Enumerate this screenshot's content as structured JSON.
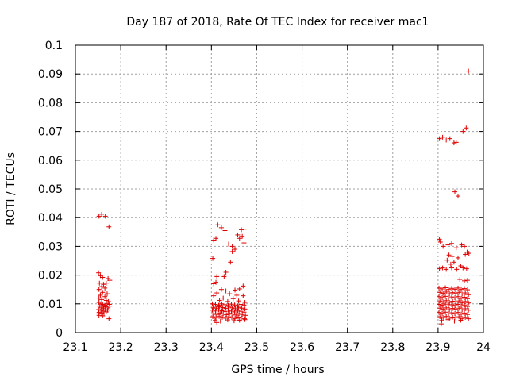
{
  "chart_data": {
    "type": "scatter",
    "title": "Day 187 of 2018, Rate Of TEC Index for receiver mac1",
    "xlabel": "GPS time / hours",
    "ylabel": "ROTI / TECUs",
    "xlim": [
      23.1,
      24.0
    ],
    "ylim": [
      0.0,
      0.1
    ],
    "x_ticks": [
      "23.1",
      "23.2",
      "23.3",
      "23.4",
      "23.5",
      "23.6",
      "23.7",
      "23.8",
      "23.9",
      "24"
    ],
    "y_ticks": [
      "0",
      "0.01",
      "0.02",
      "0.03",
      "0.04",
      "0.05",
      "0.06",
      "0.07",
      "0.08",
      "0.09",
      "0.1"
    ],
    "grid": true,
    "marker": "+",
    "marker_color": "#e00000",
    "series": [
      {
        "name": "ROTI",
        "points": [
          [
            23.152,
            0.0405
          ],
          [
            23.158,
            0.0412
          ],
          [
            23.166,
            0.0405
          ],
          [
            23.174,
            0.0368
          ],
          [
            23.151,
            0.0208
          ],
          [
            23.155,
            0.0198
          ],
          [
            23.16,
            0.0192
          ],
          [
            23.172,
            0.0188
          ],
          [
            23.176,
            0.0182
          ],
          [
            23.153,
            0.0172
          ],
          [
            23.162,
            0.0168
          ],
          [
            23.168,
            0.0172
          ],
          [
            23.158,
            0.016
          ],
          [
            23.165,
            0.0155
          ],
          [
            23.152,
            0.015
          ],
          [
            23.16,
            0.014
          ],
          [
            23.17,
            0.0135
          ],
          [
            23.155,
            0.013
          ],
          [
            23.165,
            0.0125
          ],
          [
            23.152,
            0.012
          ],
          [
            23.158,
            0.0115
          ],
          [
            23.168,
            0.0112
          ],
          [
            23.173,
            0.0108
          ],
          [
            23.152,
            0.0105
          ],
          [
            23.156,
            0.01
          ],
          [
            23.16,
            0.0098
          ],
          [
            23.165,
            0.0095
          ],
          [
            23.17,
            0.01
          ],
          [
            23.175,
            0.0098
          ],
          [
            23.153,
            0.0092
          ],
          [
            23.158,
            0.0088
          ],
          [
            23.162,
            0.0085
          ],
          [
            23.167,
            0.009
          ],
          [
            23.172,
            0.0086
          ],
          [
            23.176,
            0.0092
          ],
          [
            23.151,
            0.008
          ],
          [
            23.156,
            0.0078
          ],
          [
            23.161,
            0.0075
          ],
          [
            23.166,
            0.008
          ],
          [
            23.171,
            0.0078
          ],
          [
            23.152,
            0.007
          ],
          [
            23.158,
            0.0068
          ],
          [
            23.163,
            0.0065
          ],
          [
            23.168,
            0.0072
          ],
          [
            23.152,
            0.006
          ],
          [
            23.16,
            0.0058
          ],
          [
            23.174,
            0.0048
          ],
          [
            23.414,
            0.0375
          ],
          [
            23.422,
            0.0365
          ],
          [
            23.43,
            0.0355
          ],
          [
            23.466,
            0.0358
          ],
          [
            23.472,
            0.036
          ],
          [
            23.458,
            0.034
          ],
          [
            23.462,
            0.0328
          ],
          [
            23.468,
            0.0335
          ],
          [
            23.405,
            0.0322
          ],
          [
            23.41,
            0.0328
          ],
          [
            23.438,
            0.0308
          ],
          [
            23.446,
            0.03
          ],
          [
            23.452,
            0.029
          ],
          [
            23.472,
            0.0312
          ],
          [
            23.446,
            0.0282
          ],
          [
            23.403,
            0.0258
          ],
          [
            23.442,
            0.0245
          ],
          [
            23.432,
            0.021
          ],
          [
            23.428,
            0.0195
          ],
          [
            23.412,
            0.0195
          ],
          [
            23.405,
            0.017
          ],
          [
            23.41,
            0.0175
          ],
          [
            23.47,
            0.0162
          ],
          [
            23.462,
            0.0152
          ],
          [
            23.422,
            0.015
          ],
          [
            23.432,
            0.0145
          ],
          [
            23.452,
            0.0148
          ],
          [
            23.412,
            0.0138
          ],
          [
            23.44,
            0.0135
          ],
          [
            23.456,
            0.013
          ],
          [
            23.47,
            0.0128
          ],
          [
            23.405,
            0.0128
          ],
          [
            23.426,
            0.012
          ],
          [
            23.448,
            0.0118
          ],
          [
            23.418,
            0.0112
          ],
          [
            23.436,
            0.0108
          ],
          [
            23.46,
            0.011
          ],
          [
            23.474,
            0.0105
          ],
          [
            23.402,
            0.01
          ],
          [
            23.409,
            0.0098
          ],
          [
            23.416,
            0.0095
          ],
          [
            23.423,
            0.01
          ],
          [
            23.43,
            0.0097
          ],
          [
            23.437,
            0.0094
          ],
          [
            23.444,
            0.0099
          ],
          [
            23.451,
            0.0096
          ],
          [
            23.458,
            0.0093
          ],
          [
            23.465,
            0.0098
          ],
          [
            23.472,
            0.0095
          ],
          [
            23.404,
            0.0088
          ],
          [
            23.411,
            0.0085
          ],
          [
            23.418,
            0.009
          ],
          [
            23.425,
            0.0087
          ],
          [
            23.432,
            0.0084
          ],
          [
            23.439,
            0.0089
          ],
          [
            23.446,
            0.0086
          ],
          [
            23.453,
            0.0083
          ],
          [
            23.46,
            0.0088
          ],
          [
            23.467,
            0.0085
          ],
          [
            23.474,
            0.0082
          ],
          [
            23.402,
            0.0078
          ],
          [
            23.409,
            0.0075
          ],
          [
            23.416,
            0.0079
          ],
          [
            23.423,
            0.0076
          ],
          [
            23.43,
            0.0073
          ],
          [
            23.437,
            0.0078
          ],
          [
            23.444,
            0.0075
          ],
          [
            23.451,
            0.0072
          ],
          [
            23.458,
            0.0077
          ],
          [
            23.465,
            0.0074
          ],
          [
            23.472,
            0.0071
          ],
          [
            23.405,
            0.0066
          ],
          [
            23.412,
            0.0063
          ],
          [
            23.419,
            0.0068
          ],
          [
            23.426,
            0.0065
          ],
          [
            23.433,
            0.0062
          ],
          [
            23.44,
            0.0067
          ],
          [
            23.447,
            0.0064
          ],
          [
            23.454,
            0.0061
          ],
          [
            23.461,
            0.0066
          ],
          [
            23.468,
            0.0063
          ],
          [
            23.475,
            0.006
          ],
          [
            23.403,
            0.0055
          ],
          [
            23.41,
            0.0052
          ],
          [
            23.417,
            0.0056
          ],
          [
            23.424,
            0.0053
          ],
          [
            23.431,
            0.005
          ],
          [
            23.438,
            0.0055
          ],
          [
            23.445,
            0.0052
          ],
          [
            23.452,
            0.0049
          ],
          [
            23.459,
            0.0054
          ],
          [
            23.466,
            0.0051
          ],
          [
            23.473,
            0.0048
          ],
          [
            23.408,
            0.0042
          ],
          [
            23.42,
            0.004
          ],
          [
            23.436,
            0.0044
          ],
          [
            23.45,
            0.0041
          ],
          [
            23.462,
            0.0043
          ],
          [
            23.474,
            0.0045
          ],
          [
            23.412,
            0.0035
          ],
          [
            23.903,
            0.0675
          ],
          [
            23.91,
            0.068
          ],
          [
            23.918,
            0.067
          ],
          [
            23.926,
            0.0675
          ],
          [
            23.935,
            0.066
          ],
          [
            23.94,
            0.0662
          ],
          [
            23.955,
            0.07
          ],
          [
            23.962,
            0.0712
          ],
          [
            23.967,
            0.091
          ],
          [
            23.937,
            0.049
          ],
          [
            23.944,
            0.0475
          ],
          [
            23.903,
            0.0325
          ],
          [
            23.905,
            0.0315
          ],
          [
            23.911,
            0.03
          ],
          [
            23.922,
            0.0305
          ],
          [
            23.93,
            0.031
          ],
          [
            23.94,
            0.0295
          ],
          [
            23.952,
            0.0305
          ],
          [
            23.958,
            0.03
          ],
          [
            23.964,
            0.028
          ],
          [
            23.96,
            0.0272
          ],
          [
            23.968,
            0.0276
          ],
          [
            23.924,
            0.027
          ],
          [
            23.931,
            0.0265
          ],
          [
            23.944,
            0.026
          ],
          [
            23.92,
            0.0252
          ],
          [
            23.935,
            0.0245
          ],
          [
            23.928,
            0.0238
          ],
          [
            23.95,
            0.0232
          ],
          [
            23.903,
            0.0222
          ],
          [
            23.91,
            0.0225
          ],
          [
            23.918,
            0.022
          ],
          [
            23.93,
            0.0225
          ],
          [
            23.941,
            0.022
          ],
          [
            23.955,
            0.0225
          ],
          [
            23.963,
            0.0222
          ],
          [
            23.948,
            0.0185
          ],
          [
            23.958,
            0.018
          ],
          [
            23.965,
            0.0182
          ],
          [
            23.902,
            0.0155
          ],
          [
            23.909,
            0.0152
          ],
          [
            23.916,
            0.0156
          ],
          [
            23.923,
            0.015
          ],
          [
            23.93,
            0.0154
          ],
          [
            23.937,
            0.0151
          ],
          [
            23.944,
            0.0155
          ],
          [
            23.951,
            0.015
          ],
          [
            23.958,
            0.0153
          ],
          [
            23.965,
            0.0149
          ],
          [
            23.904,
            0.014
          ],
          [
            23.911,
            0.0137
          ],
          [
            23.918,
            0.0141
          ],
          [
            23.925,
            0.0135
          ],
          [
            23.932,
            0.0139
          ],
          [
            23.939,
            0.0136
          ],
          [
            23.946,
            0.014
          ],
          [
            23.953,
            0.0134
          ],
          [
            23.96,
            0.0138
          ],
          [
            23.967,
            0.0132
          ],
          [
            23.902,
            0.0125
          ],
          [
            23.909,
            0.0122
          ],
          [
            23.916,
            0.0126
          ],
          [
            23.923,
            0.012
          ],
          [
            23.93,
            0.0124
          ],
          [
            23.937,
            0.0121
          ],
          [
            23.944,
            0.0125
          ],
          [
            23.951,
            0.0119
          ],
          [
            23.958,
            0.0123
          ],
          [
            23.965,
            0.0118
          ],
          [
            23.904,
            0.011
          ],
          [
            23.911,
            0.0107
          ],
          [
            23.918,
            0.0111
          ],
          [
            23.925,
            0.0105
          ],
          [
            23.932,
            0.0109
          ],
          [
            23.939,
            0.0106
          ],
          [
            23.946,
            0.011
          ],
          [
            23.953,
            0.0104
          ],
          [
            23.96,
            0.0108
          ],
          [
            23.967,
            0.0103
          ],
          [
            23.902,
            0.0098
          ],
          [
            23.909,
            0.0095
          ],
          [
            23.916,
            0.0099
          ],
          [
            23.923,
            0.0093
          ],
          [
            23.93,
            0.0097
          ],
          [
            23.937,
            0.0094
          ],
          [
            23.944,
            0.0098
          ],
          [
            23.951,
            0.0092
          ],
          [
            23.958,
            0.0096
          ],
          [
            23.965,
            0.0091
          ],
          [
            23.904,
            0.0085
          ],
          [
            23.911,
            0.0082
          ],
          [
            23.918,
            0.0086
          ],
          [
            23.925,
            0.008
          ],
          [
            23.932,
            0.0084
          ],
          [
            23.939,
            0.0081
          ],
          [
            23.946,
            0.0085
          ],
          [
            23.953,
            0.0079
          ],
          [
            23.96,
            0.0083
          ],
          [
            23.967,
            0.0078
          ],
          [
            23.902,
            0.007
          ],
          [
            23.909,
            0.0067
          ],
          [
            23.916,
            0.0071
          ],
          [
            23.923,
            0.0065
          ],
          [
            23.93,
            0.0069
          ],
          [
            23.937,
            0.0066
          ],
          [
            23.944,
            0.007
          ],
          [
            23.951,
            0.0064
          ],
          [
            23.958,
            0.0068
          ],
          [
            23.965,
            0.0063
          ],
          [
            23.904,
            0.0055
          ],
          [
            23.911,
            0.0052
          ],
          [
            23.918,
            0.0056
          ],
          [
            23.925,
            0.005
          ],
          [
            23.932,
            0.0054
          ],
          [
            23.939,
            0.0051
          ],
          [
            23.946,
            0.0055
          ],
          [
            23.953,
            0.0049
          ],
          [
            23.96,
            0.0053
          ],
          [
            23.967,
            0.0048
          ],
          [
            23.908,
            0.0042
          ],
          [
            23.922,
            0.0045
          ],
          [
            23.936,
            0.004
          ],
          [
            23.95,
            0.0043
          ],
          [
            23.907,
            0.003
          ]
        ]
      }
    ]
  }
}
